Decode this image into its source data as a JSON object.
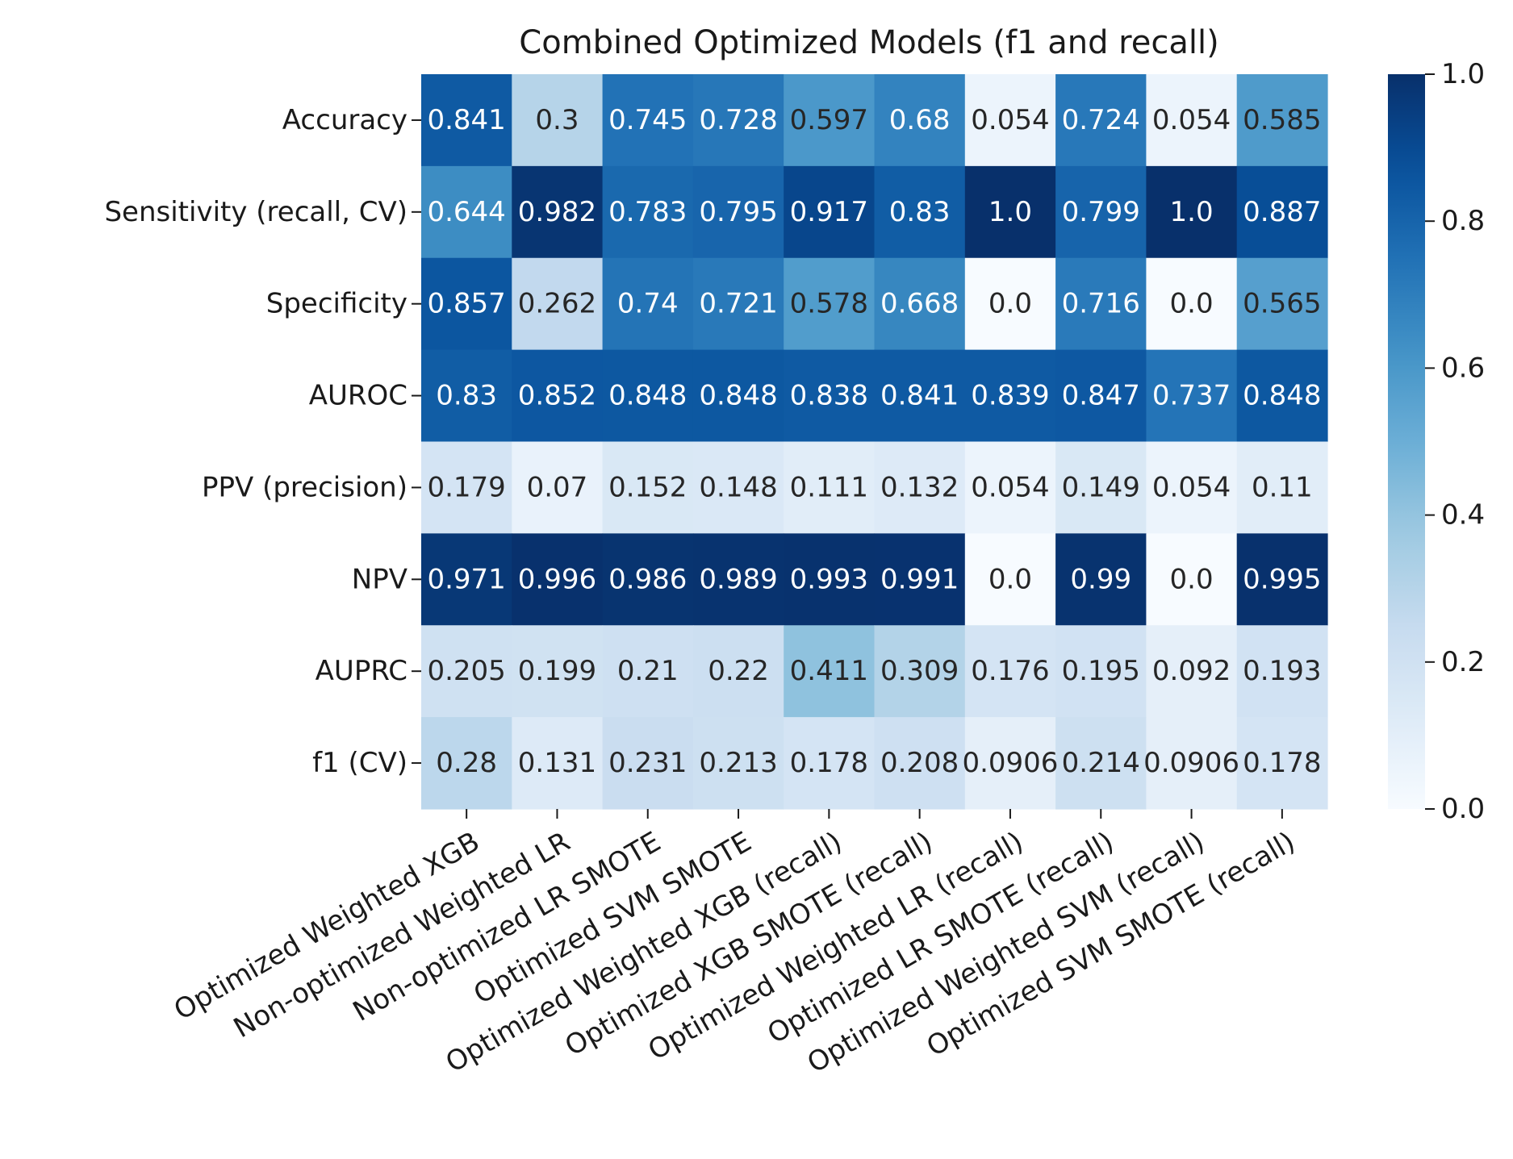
{
  "chart_data": {
    "type": "heatmap",
    "title": "Combined Optimized Models (f1 and recall)",
    "xlabel": "",
    "ylabel": "",
    "colormap": "Blues",
    "rows": [
      "Accuracy",
      "Sensitivity (recall, CV)",
      "Specificity",
      "AUROC",
      "PPV (precision)",
      "NPV",
      "AUPRC",
      "f1 (CV)"
    ],
    "columns": [
      "Optimized Weighted XGB",
      "Non-optimized Weighted LR",
      "Non-optimized LR SMOTE",
      "Optimized SVM SMOTE",
      "Optimized Weighted XGB (recall)",
      "Optimized XGB SMOTE (recall)",
      "Optimized Weighted LR (recall)",
      "Optimized LR SMOTE (recall)",
      "Optimized Weighted SVM (recall)",
      "Optimized SVM SMOTE (recall)"
    ],
    "values": [
      [
        0.841,
        0.3,
        0.745,
        0.728,
        0.597,
        0.68,
        0.054,
        0.724,
        0.054,
        0.585
      ],
      [
        0.644,
        0.982,
        0.783,
        0.795,
        0.917,
        0.83,
        1.0,
        0.799,
        1.0,
        0.887
      ],
      [
        0.857,
        0.262,
        0.74,
        0.721,
        0.578,
        0.668,
        0.0,
        0.716,
        0.0,
        0.565
      ],
      [
        0.83,
        0.852,
        0.848,
        0.848,
        0.838,
        0.841,
        0.839,
        0.847,
        0.737,
        0.848
      ],
      [
        0.179,
        0.07,
        0.152,
        0.148,
        0.111,
        0.132,
        0.054,
        0.149,
        0.054,
        0.11
      ],
      [
        0.971,
        0.996,
        0.986,
        0.989,
        0.993,
        0.991,
        0.0,
        0.99,
        0.0,
        0.995
      ],
      [
        0.205,
        0.199,
        0.21,
        0.22,
        0.411,
        0.309,
        0.176,
        0.195,
        0.092,
        0.193
      ],
      [
        0.28,
        0.131,
        0.231,
        0.213,
        0.178,
        0.208,
        0.0906,
        0.214,
        0.0906,
        0.178
      ]
    ],
    "annotations": [
      [
        "0.841",
        "0.3",
        "0.745",
        "0.728",
        "0.597",
        "0.68",
        "0.054",
        "0.724",
        "0.054",
        "0.585"
      ],
      [
        "0.644",
        "0.982",
        "0.783",
        "0.795",
        "0.917",
        "0.83",
        "1.0",
        "0.799",
        "1.0",
        "0.887"
      ],
      [
        "0.857",
        "0.262",
        "0.74",
        "0.721",
        "0.578",
        "0.668",
        "0.0",
        "0.716",
        "0.0",
        "0.565"
      ],
      [
        "0.83",
        "0.852",
        "0.848",
        "0.848",
        "0.838",
        "0.841",
        "0.839",
        "0.847",
        "0.737",
        "0.848"
      ],
      [
        "0.179",
        "0.07",
        "0.152",
        "0.148",
        "0.111",
        "0.132",
        "0.054",
        "0.149",
        "0.054",
        "0.11"
      ],
      [
        "0.971",
        "0.996",
        "0.986",
        "0.989",
        "0.993",
        "0.991",
        "0.0",
        "0.99",
        "0.0",
        "0.995"
      ],
      [
        "0.205",
        "0.199",
        "0.21",
        "0.22",
        "0.411",
        "0.309",
        "0.176",
        "0.195",
        "0.092",
        "0.193"
      ],
      [
        "0.28",
        "0.131",
        "0.231",
        "0.213",
        "0.178",
        "0.208",
        "0.0906",
        "0.214",
        "0.0906",
        "0.178"
      ]
    ],
    "colorbar": {
      "range": [
        0.0,
        1.0
      ],
      "ticks": [
        0.0,
        0.2,
        0.4,
        0.6,
        0.8,
        1.0
      ],
      "tick_labels": [
        "0.0",
        "0.2",
        "0.4",
        "0.6",
        "0.8",
        "1.0"
      ]
    },
    "grid": false
  }
}
